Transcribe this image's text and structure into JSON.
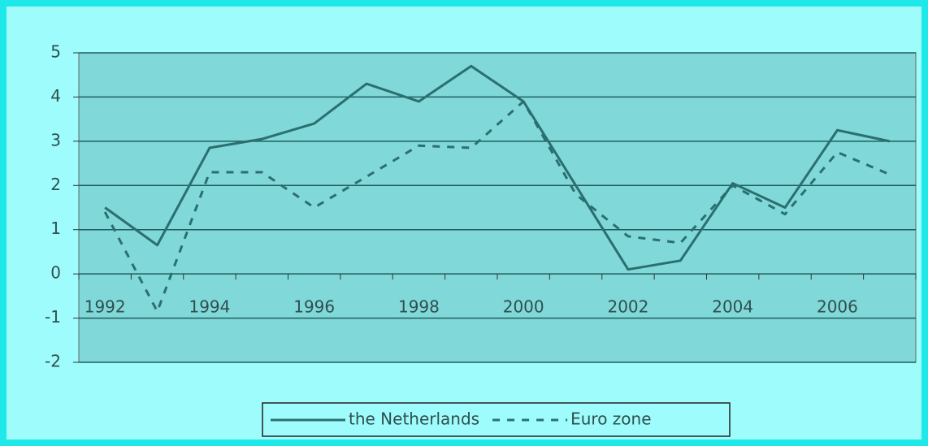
{
  "chart_data": {
    "type": "line",
    "categories": [
      "1992",
      null,
      "1994",
      null,
      "1996",
      null,
      "1998",
      null,
      "2000",
      null,
      "2002",
      null,
      "2004",
      null,
      "2006",
      null
    ],
    "series": [
      {
        "name": "the Netherlands",
        "color": "#2b6f6f",
        "style": "solid",
        "values": [
          1.5,
          0.65,
          2.85,
          3.05,
          3.4,
          4.3,
          3.9,
          4.7,
          3.9,
          2.0,
          0.1,
          0.3,
          2.05,
          1.5,
          3.25,
          3.0
        ]
      },
      {
        "name": "Euro zone",
        "color": "#2b6f6f",
        "style": "dashed",
        "values": [
          1.4,
          -0.85,
          2.3,
          2.3,
          1.5,
          2.2,
          2.9,
          2.85,
          3.9,
          1.8,
          0.85,
          0.7,
          2.0,
          1.35,
          2.75,
          2.25
        ]
      }
    ],
    "ylim": [
      -2,
      5
    ],
    "yticks": [
      -2,
      -1,
      0,
      1,
      2,
      3,
      4,
      5
    ],
    "grid": true,
    "legend": "bottom"
  }
}
